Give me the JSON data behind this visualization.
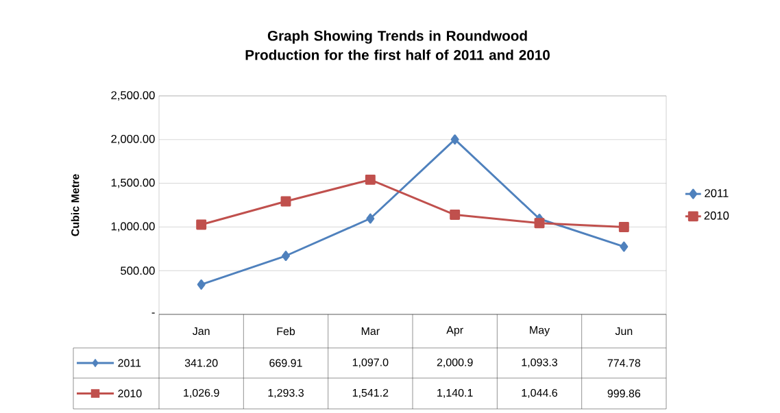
{
  "chart_data": {
    "type": "line",
    "title": "Graph Showing Trends in Roundwood Production for the first half of 2011 and 2010",
    "ylabel": "Cubic Metre",
    "categories": [
      "Jan",
      "Feb",
      "Mar",
      "Apr",
      "May",
      "Jun"
    ],
    "series": [
      {
        "name": "2011",
        "color": "#4f81bd",
        "marker": "diamond",
        "values": [
          341.2,
          669.91,
          1097.0,
          2000.9,
          1093.3,
          774.78
        ],
        "value_labels": [
          "341.20",
          "669.91",
          "1,097.0",
          "2,000.9",
          "1,093.3",
          "774.78"
        ]
      },
      {
        "name": "2010",
        "color": "#c0504d",
        "marker": "square",
        "values": [
          1026.9,
          1293.3,
          1541.2,
          1140.1,
          1044.6,
          999.86
        ],
        "value_labels": [
          "1,026.9",
          "1,293.3",
          "1,541.2",
          "1,140.1",
          "1,044.6",
          "999.86"
        ]
      }
    ],
    "ylim": [
      0,
      2500
    ],
    "yticks": [
      {
        "value": 0,
        "label": "-"
      },
      {
        "value": 500,
        "label": "500.00"
      },
      {
        "value": 1000,
        "label": "1,000.00"
      },
      {
        "value": 1500,
        "label": "1,500.00"
      },
      {
        "value": 2000,
        "label": "2,000.00"
      },
      {
        "value": 2500,
        "label": "2,500.00"
      }
    ],
    "grid": "y",
    "legend": "right",
    "line_style": "solid"
  }
}
